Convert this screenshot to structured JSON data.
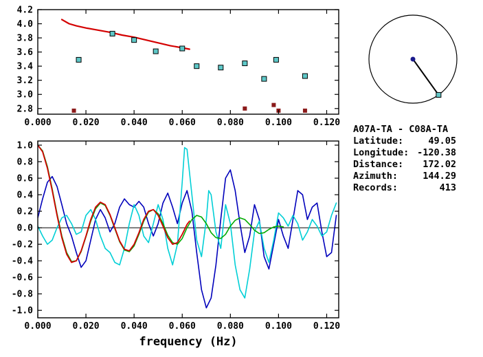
{
  "station_info": {
    "title": "A07A-TA - C08A-TA",
    "fields": [
      {
        "label": "Latitude:",
        "value": "49.05"
      },
      {
        "label": "Longitude:",
        "value": "-120.38"
      },
      {
        "label": "Distance:",
        "value": "172.02"
      },
      {
        "label": "Azimuth:",
        "value": "144.29"
      },
      {
        "label": "Records:",
        "value": "413"
      }
    ]
  },
  "dial": {
    "azimuth_deg": 144.29,
    "center_color": "#1a1a8c",
    "marker_color": "#63c6c6"
  },
  "chart_data": [
    {
      "id": "dispersion",
      "type": "scatter",
      "title": "",
      "xlabel": "",
      "ylabel": "",
      "xlim": [
        0,
        0.125
      ],
      "ylim": [
        2.72,
        4.2
      ],
      "xticks": [
        0.0,
        0.02,
        0.04,
        0.06,
        0.08,
        0.1,
        0.12
      ],
      "yticks": [
        4.2,
        4.0,
        3.8,
        3.6,
        3.4,
        3.2,
        3.0,
        2.8
      ],
      "x_decimals": 3,
      "y_decimals": 1,
      "grid": false,
      "zero_line": false,
      "series": [
        {
          "name": "reference-dispersion-curve",
          "kind": "line",
          "color": "#d40000",
          "width": 2.2,
          "points": [
            [
              0.01,
              4.06
            ],
            [
              0.013,
              4.0
            ],
            [
              0.016,
              3.97
            ],
            [
              0.02,
              3.94
            ],
            [
              0.025,
              3.91
            ],
            [
              0.03,
              3.88
            ],
            [
              0.035,
              3.84
            ],
            [
              0.04,
              3.81
            ],
            [
              0.045,
              3.77
            ],
            [
              0.05,
              3.73
            ],
            [
              0.055,
              3.69
            ],
            [
              0.06,
              3.66
            ],
            [
              0.063,
              3.64
            ]
          ]
        },
        {
          "name": "accepted-measurements",
          "kind": "square",
          "color": "#5ec8c8",
          "edge": "#000000",
          "size": 7,
          "points": [
            [
              0.017,
              3.49
            ],
            [
              0.031,
              3.86
            ],
            [
              0.04,
              3.77
            ],
            [
              0.049,
              3.61
            ],
            [
              0.06,
              3.65
            ],
            [
              0.066,
              3.4
            ],
            [
              0.076,
              3.38
            ],
            [
              0.086,
              3.44
            ],
            [
              0.094,
              3.22
            ],
            [
              0.099,
              3.49
            ],
            [
              0.111,
              3.26
            ]
          ]
        },
        {
          "name": "rejected-measurements",
          "kind": "square",
          "color": "#8b1a1a",
          "edge": "",
          "size": 6,
          "points": [
            [
              0.015,
              2.77
            ],
            [
              0.086,
              2.8
            ],
            [
              0.098,
              2.85
            ],
            [
              0.1,
              2.77
            ],
            [
              0.111,
              2.77
            ]
          ]
        }
      ]
    },
    {
      "id": "waveforms",
      "type": "line",
      "title": "",
      "xlabel": "frequency (Hz)",
      "ylabel": "",
      "xlim": [
        0,
        0.125
      ],
      "ylim": [
        -1.09,
        1.05
      ],
      "xticks": [
        0.0,
        0.02,
        0.04,
        0.06,
        0.08,
        0.1,
        0.12
      ],
      "yticks": [
        1.0,
        0.8,
        0.6,
        0.4,
        0.2,
        0.0,
        -0.2,
        -0.4,
        -0.6,
        -0.8,
        -1.0
      ],
      "x_decimals": 3,
      "y_decimals": 1,
      "grid": false,
      "zero_line": true,
      "series": [
        {
          "name": "stack-waveform-blue",
          "kind": "line",
          "color": "#0000bb",
          "width": 1.6,
          "points": [
            [
              0.0,
              0.12
            ],
            [
              0.002,
              0.35
            ],
            [
              0.004,
              0.55
            ],
            [
              0.006,
              0.62
            ],
            [
              0.008,
              0.5
            ],
            [
              0.01,
              0.28
            ],
            [
              0.012,
              0.05
            ],
            [
              0.014,
              -0.1
            ],
            [
              0.016,
              -0.3
            ],
            [
              0.018,
              -0.48
            ],
            [
              0.02,
              -0.4
            ],
            [
              0.022,
              -0.15
            ],
            [
              0.024,
              0.1
            ],
            [
              0.026,
              0.22
            ],
            [
              0.028,
              0.12
            ],
            [
              0.03,
              -0.05
            ],
            [
              0.032,
              0.05
            ],
            [
              0.034,
              0.25
            ],
            [
              0.036,
              0.35
            ],
            [
              0.038,
              0.28
            ],
            [
              0.04,
              0.25
            ],
            [
              0.042,
              0.32
            ],
            [
              0.044,
              0.25
            ],
            [
              0.046,
              0.05
            ],
            [
              0.048,
              -0.1
            ],
            [
              0.05,
              0.05
            ],
            [
              0.052,
              0.3
            ],
            [
              0.054,
              0.42
            ],
            [
              0.056,
              0.25
            ],
            [
              0.058,
              0.05
            ],
            [
              0.06,
              0.3
            ],
            [
              0.062,
              0.45
            ],
            [
              0.064,
              0.2
            ],
            [
              0.066,
              -0.3
            ],
            [
              0.068,
              -0.75
            ],
            [
              0.07,
              -0.97
            ],
            [
              0.072,
              -0.85
            ],
            [
              0.074,
              -0.45
            ],
            [
              0.076,
              0.1
            ],
            [
              0.078,
              0.6
            ],
            [
              0.08,
              0.7
            ],
            [
              0.082,
              0.45
            ],
            [
              0.084,
              0.05
            ],
            [
              0.086,
              -0.3
            ],
            [
              0.088,
              -0.1
            ],
            [
              0.09,
              0.28
            ],
            [
              0.092,
              0.1
            ],
            [
              0.094,
              -0.35
            ],
            [
              0.096,
              -0.5
            ],
            [
              0.098,
              -0.2
            ],
            [
              0.1,
              0.1
            ],
            [
              0.102,
              -0.1
            ],
            [
              0.104,
              -0.25
            ],
            [
              0.106,
              0.1
            ],
            [
              0.108,
              0.45
            ],
            [
              0.11,
              0.4
            ],
            [
              0.112,
              0.1
            ],
            [
              0.114,
              0.25
            ],
            [
              0.116,
              0.3
            ],
            [
              0.118,
              -0.05
            ],
            [
              0.12,
              -0.35
            ],
            [
              0.122,
              -0.3
            ],
            [
              0.124,
              0.15
            ]
          ]
        },
        {
          "name": "stack-waveform-cyan",
          "kind": "line",
          "color": "#00cfd6",
          "width": 1.6,
          "points": [
            [
              0.0,
              0.02
            ],
            [
              0.002,
              -0.1
            ],
            [
              0.004,
              -0.2
            ],
            [
              0.006,
              -0.15
            ],
            [
              0.008,
              0.0
            ],
            [
              0.01,
              0.12
            ],
            [
              0.012,
              0.15
            ],
            [
              0.014,
              0.05
            ],
            [
              0.016,
              -0.08
            ],
            [
              0.018,
              -0.05
            ],
            [
              0.02,
              0.15
            ],
            [
              0.022,
              0.22
            ],
            [
              0.024,
              0.1
            ],
            [
              0.026,
              -0.1
            ],
            [
              0.028,
              -0.25
            ],
            [
              0.03,
              -0.3
            ],
            [
              0.032,
              -0.42
            ],
            [
              0.034,
              -0.45
            ],
            [
              0.036,
              -0.25
            ],
            [
              0.038,
              0.05
            ],
            [
              0.04,
              0.28
            ],
            [
              0.042,
              0.15
            ],
            [
              0.044,
              -0.1
            ],
            [
              0.046,
              -0.18
            ],
            [
              0.048,
              0.05
            ],
            [
              0.05,
              0.28
            ],
            [
              0.052,
              0.1
            ],
            [
              0.054,
              -0.25
            ],
            [
              0.056,
              -0.45
            ],
            [
              0.058,
              -0.2
            ],
            [
              0.06,
              0.55
            ],
            [
              0.061,
              0.97
            ],
            [
              0.062,
              0.95
            ],
            [
              0.064,
              0.4
            ],
            [
              0.066,
              -0.15
            ],
            [
              0.068,
              -0.35
            ],
            [
              0.07,
              0.1
            ],
            [
              0.071,
              0.45
            ],
            [
              0.072,
              0.4
            ],
            [
              0.074,
              -0.05
            ],
            [
              0.076,
              -0.25
            ],
            [
              0.078,
              0.28
            ],
            [
              0.08,
              0.05
            ],
            [
              0.082,
              -0.45
            ],
            [
              0.084,
              -0.75
            ],
            [
              0.086,
              -0.85
            ],
            [
              0.088,
              -0.5
            ],
            [
              0.09,
              -0.05
            ],
            [
              0.092,
              0.08
            ],
            [
              0.094,
              -0.25
            ],
            [
              0.096,
              -0.42
            ],
            [
              0.098,
              -0.15
            ],
            [
              0.1,
              0.18
            ],
            [
              0.102,
              0.12
            ],
            [
              0.104,
              0.02
            ],
            [
              0.106,
              0.15
            ],
            [
              0.108,
              0.05
            ],
            [
              0.11,
              -0.15
            ],
            [
              0.112,
              -0.05
            ],
            [
              0.114,
              0.1
            ],
            [
              0.116,
              0.02
            ],
            [
              0.118,
              -0.1
            ],
            [
              0.12,
              -0.05
            ],
            [
              0.122,
              0.15
            ],
            [
              0.124,
              0.3
            ]
          ]
        },
        {
          "name": "fitted-waveform-green",
          "kind": "line",
          "color": "#00aa00",
          "width": 1.6,
          "points": [
            [
              0.0,
              1.0
            ],
            [
              0.002,
              0.93
            ],
            [
              0.004,
              0.74
            ],
            [
              0.006,
              0.47
            ],
            [
              0.008,
              0.17
            ],
            [
              0.01,
              -0.1
            ],
            [
              0.012,
              -0.3
            ],
            [
              0.014,
              -0.41
            ],
            [
              0.016,
              -0.4
            ],
            [
              0.018,
              -0.29
            ],
            [
              0.02,
              -0.11
            ],
            [
              0.022,
              0.08
            ],
            [
              0.024,
              0.23
            ],
            [
              0.026,
              0.3
            ],
            [
              0.028,
              0.27
            ],
            [
              0.03,
              0.15
            ],
            [
              0.032,
              -0.01
            ],
            [
              0.034,
              -0.17
            ],
            [
              0.036,
              -0.27
            ],
            [
              0.038,
              -0.29
            ],
            [
              0.04,
              -0.22
            ],
            [
              0.042,
              -0.08
            ],
            [
              0.044,
              0.08
            ],
            [
              0.046,
              0.19
            ],
            [
              0.048,
              0.22
            ],
            [
              0.05,
              0.17
            ],
            [
              0.052,
              0.05
            ],
            [
              0.054,
              -0.09
            ],
            [
              0.056,
              -0.18
            ],
            [
              0.058,
              -0.2
            ],
            [
              0.06,
              -0.13
            ],
            [
              0.062,
              0.0
            ],
            [
              0.064,
              0.1
            ],
            [
              0.066,
              0.15
            ],
            [
              0.068,
              0.13
            ],
            [
              0.07,
              0.05
            ],
            [
              0.072,
              -0.06
            ],
            [
              0.074,
              -0.12
            ],
            [
              0.076,
              -0.13
            ],
            [
              0.078,
              -0.08
            ],
            [
              0.08,
              0.02
            ],
            [
              0.082,
              0.09
            ],
            [
              0.084,
              0.12
            ],
            [
              0.086,
              0.1
            ],
            [
              0.088,
              0.04
            ],
            [
              0.09,
              -0.03
            ],
            [
              0.092,
              -0.07
            ],
            [
              0.094,
              -0.06
            ],
            [
              0.096,
              -0.02
            ],
            [
              0.098,
              0.01
            ],
            [
              0.1,
              0.02
            ],
            [
              0.102,
              0.01
            ]
          ]
        },
        {
          "name": "fitted-waveform-red",
          "kind": "line",
          "color": "#d40000",
          "width": 1.8,
          "points": [
            [
              0.0,
              1.0
            ],
            [
              0.002,
              0.92
            ],
            [
              0.004,
              0.72
            ],
            [
              0.006,
              0.45
            ],
            [
              0.008,
              0.15
            ],
            [
              0.01,
              -0.12
            ],
            [
              0.012,
              -0.32
            ],
            [
              0.014,
              -0.42
            ],
            [
              0.016,
              -0.4
            ],
            [
              0.018,
              -0.28
            ],
            [
              0.02,
              -0.1
            ],
            [
              0.022,
              0.1
            ],
            [
              0.024,
              0.25
            ],
            [
              0.026,
              0.31
            ],
            [
              0.028,
              0.28
            ],
            [
              0.03,
              0.16
            ],
            [
              0.032,
              0.0
            ],
            [
              0.034,
              -0.16
            ],
            [
              0.036,
              -0.26
            ],
            [
              0.038,
              -0.28
            ],
            [
              0.04,
              -0.2
            ],
            [
              0.042,
              -0.06
            ],
            [
              0.044,
              0.1
            ],
            [
              0.046,
              0.2
            ],
            [
              0.048,
              0.22
            ],
            [
              0.05,
              0.15
            ],
            [
              0.052,
              0.02
            ],
            [
              0.054,
              -0.12
            ],
            [
              0.056,
              -0.2
            ],
            [
              0.058,
              -0.18
            ],
            [
              0.06,
              -0.08
            ],
            [
              0.062,
              0.04
            ],
            [
              0.063,
              0.08
            ]
          ]
        }
      ]
    }
  ]
}
